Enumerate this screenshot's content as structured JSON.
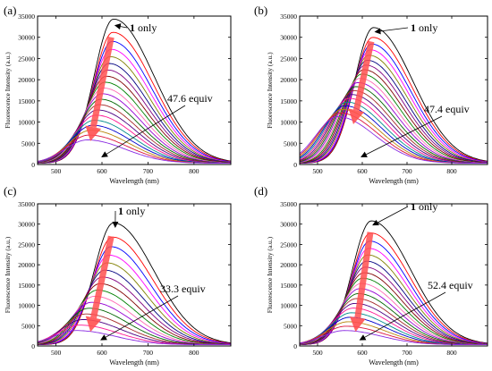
{
  "chart_data": [
    {
      "type": "line",
      "panel_label": "(a)",
      "xlabel": "Wavelength (nm)",
      "ylabel": "Fluorescence Intensity (a.u.)",
      "xlim": [
        460,
        880
      ],
      "ylim": [
        0,
        35000
      ],
      "xticks": [
        500,
        600,
        700,
        800
      ],
      "yticks": [
        0,
        5000,
        10000,
        15000,
        20000,
        25000,
        30000,
        35000
      ],
      "curve_count": 20,
      "start": {
        "peak_x": 625,
        "peak_y": 34000
      },
      "end": {
        "peak_x": 568,
        "peak_y": 5500
      },
      "annotations": [
        {
          "text_bold": "1",
          "text": " only",
          "points_to": [
            625,
            33000
          ]
        },
        {
          "text": "47.6 equiv",
          "points_to": [
            600,
            1800
          ]
        }
      ],
      "trend_arrow": {
        "from": [
          620,
          30000
        ],
        "to": [
          575,
          5500
        ]
      }
    },
    {
      "type": "line",
      "panel_label": "(b)",
      "xlabel": "Wavelength (nm)",
      "ylabel": "Fluorescence Intensity (a.u.)",
      "xlim": [
        460,
        880
      ],
      "ylim": [
        0,
        35000
      ],
      "xticks": [
        500,
        600,
        700,
        800
      ],
      "yticks": [
        0,
        5000,
        10000,
        15000,
        20000,
        25000,
        30000,
        35000
      ],
      "curve_count": 20,
      "start": {
        "peak_x": 625,
        "peak_y": 32000
      },
      "end": {
        "peak_x": 545,
        "peak_y": 11000
      },
      "annotations": [
        {
          "text_bold": "1",
          "text": " only",
          "points_to": [
            625,
            31500
          ]
        },
        {
          "text": "47.4 equiv",
          "points_to": [
            598,
            1800
          ]
        }
      ],
      "trend_arrow": {
        "from": [
          620,
          29000
        ],
        "to": [
          580,
          9500
        ]
      }
    },
    {
      "type": "line",
      "panel_label": "(c)",
      "xlabel": "Wavelength (nm)",
      "ylabel": "Fluorescence Intensity (a.u.)",
      "xlim": [
        460,
        880
      ],
      "ylim": [
        0,
        35000
      ],
      "xticks": [
        500,
        600,
        700,
        800
      ],
      "yticks": [
        0,
        5000,
        10000,
        15000,
        20000,
        25000,
        30000,
        35000
      ],
      "curve_count": 16,
      "start": {
        "peak_x": 625,
        "peak_y": 30000
      },
      "end": {
        "peak_x": 545,
        "peak_y": 3500
      },
      "annotations": [
        {
          "text_bold": "1",
          "text": " only",
          "points_to": [
            625,
            29500
          ]
        },
        {
          "text": "33.3 equiv",
          "points_to": [
            598,
            1500
          ]
        }
      ],
      "trend_arrow": {
        "from": [
          620,
          27000
        ],
        "to": [
          575,
          3500
        ]
      }
    },
    {
      "type": "line",
      "panel_label": "(d)",
      "xlabel": "Wavelength (nm)",
      "ylabel": "Fluorescence Intensity (a.u.)",
      "xlim": [
        460,
        880
      ],
      "ylim": [
        0,
        35000
      ],
      "xticks": [
        500,
        600,
        700,
        800
      ],
      "yticks": [
        0,
        5000,
        10000,
        15000,
        20000,
        25000,
        30000,
        35000
      ],
      "curve_count": 20,
      "start": {
        "peak_x": 620,
        "peak_y": 30500
      },
      "end": {
        "peak_x": 560,
        "peak_y": 3500
      },
      "annotations": [
        {
          "text_bold": "1",
          "text": " only",
          "points_to": [
            620,
            30000
          ]
        },
        {
          "text": "52.4 equiv",
          "points_to": [
            595,
            1500
          ]
        }
      ],
      "trend_arrow": {
        "from": [
          618,
          28000
        ],
        "to": [
          585,
          3500
        ]
      }
    }
  ],
  "palette": [
    "#000000",
    "#ff0000",
    "#0000ff",
    "#ff00ff",
    "#808000",
    "#000080",
    "#800080",
    "#800000",
    "#008000",
    "#ff69b4",
    "#9400d3",
    "#006400",
    "#a52a2a",
    "#4b0082",
    "#ff1493",
    "#008b8b",
    "#0000cd",
    "#b8860b",
    "#dc143c",
    "#8a2be2"
  ],
  "trend_arrow_color": "#ff5050"
}
